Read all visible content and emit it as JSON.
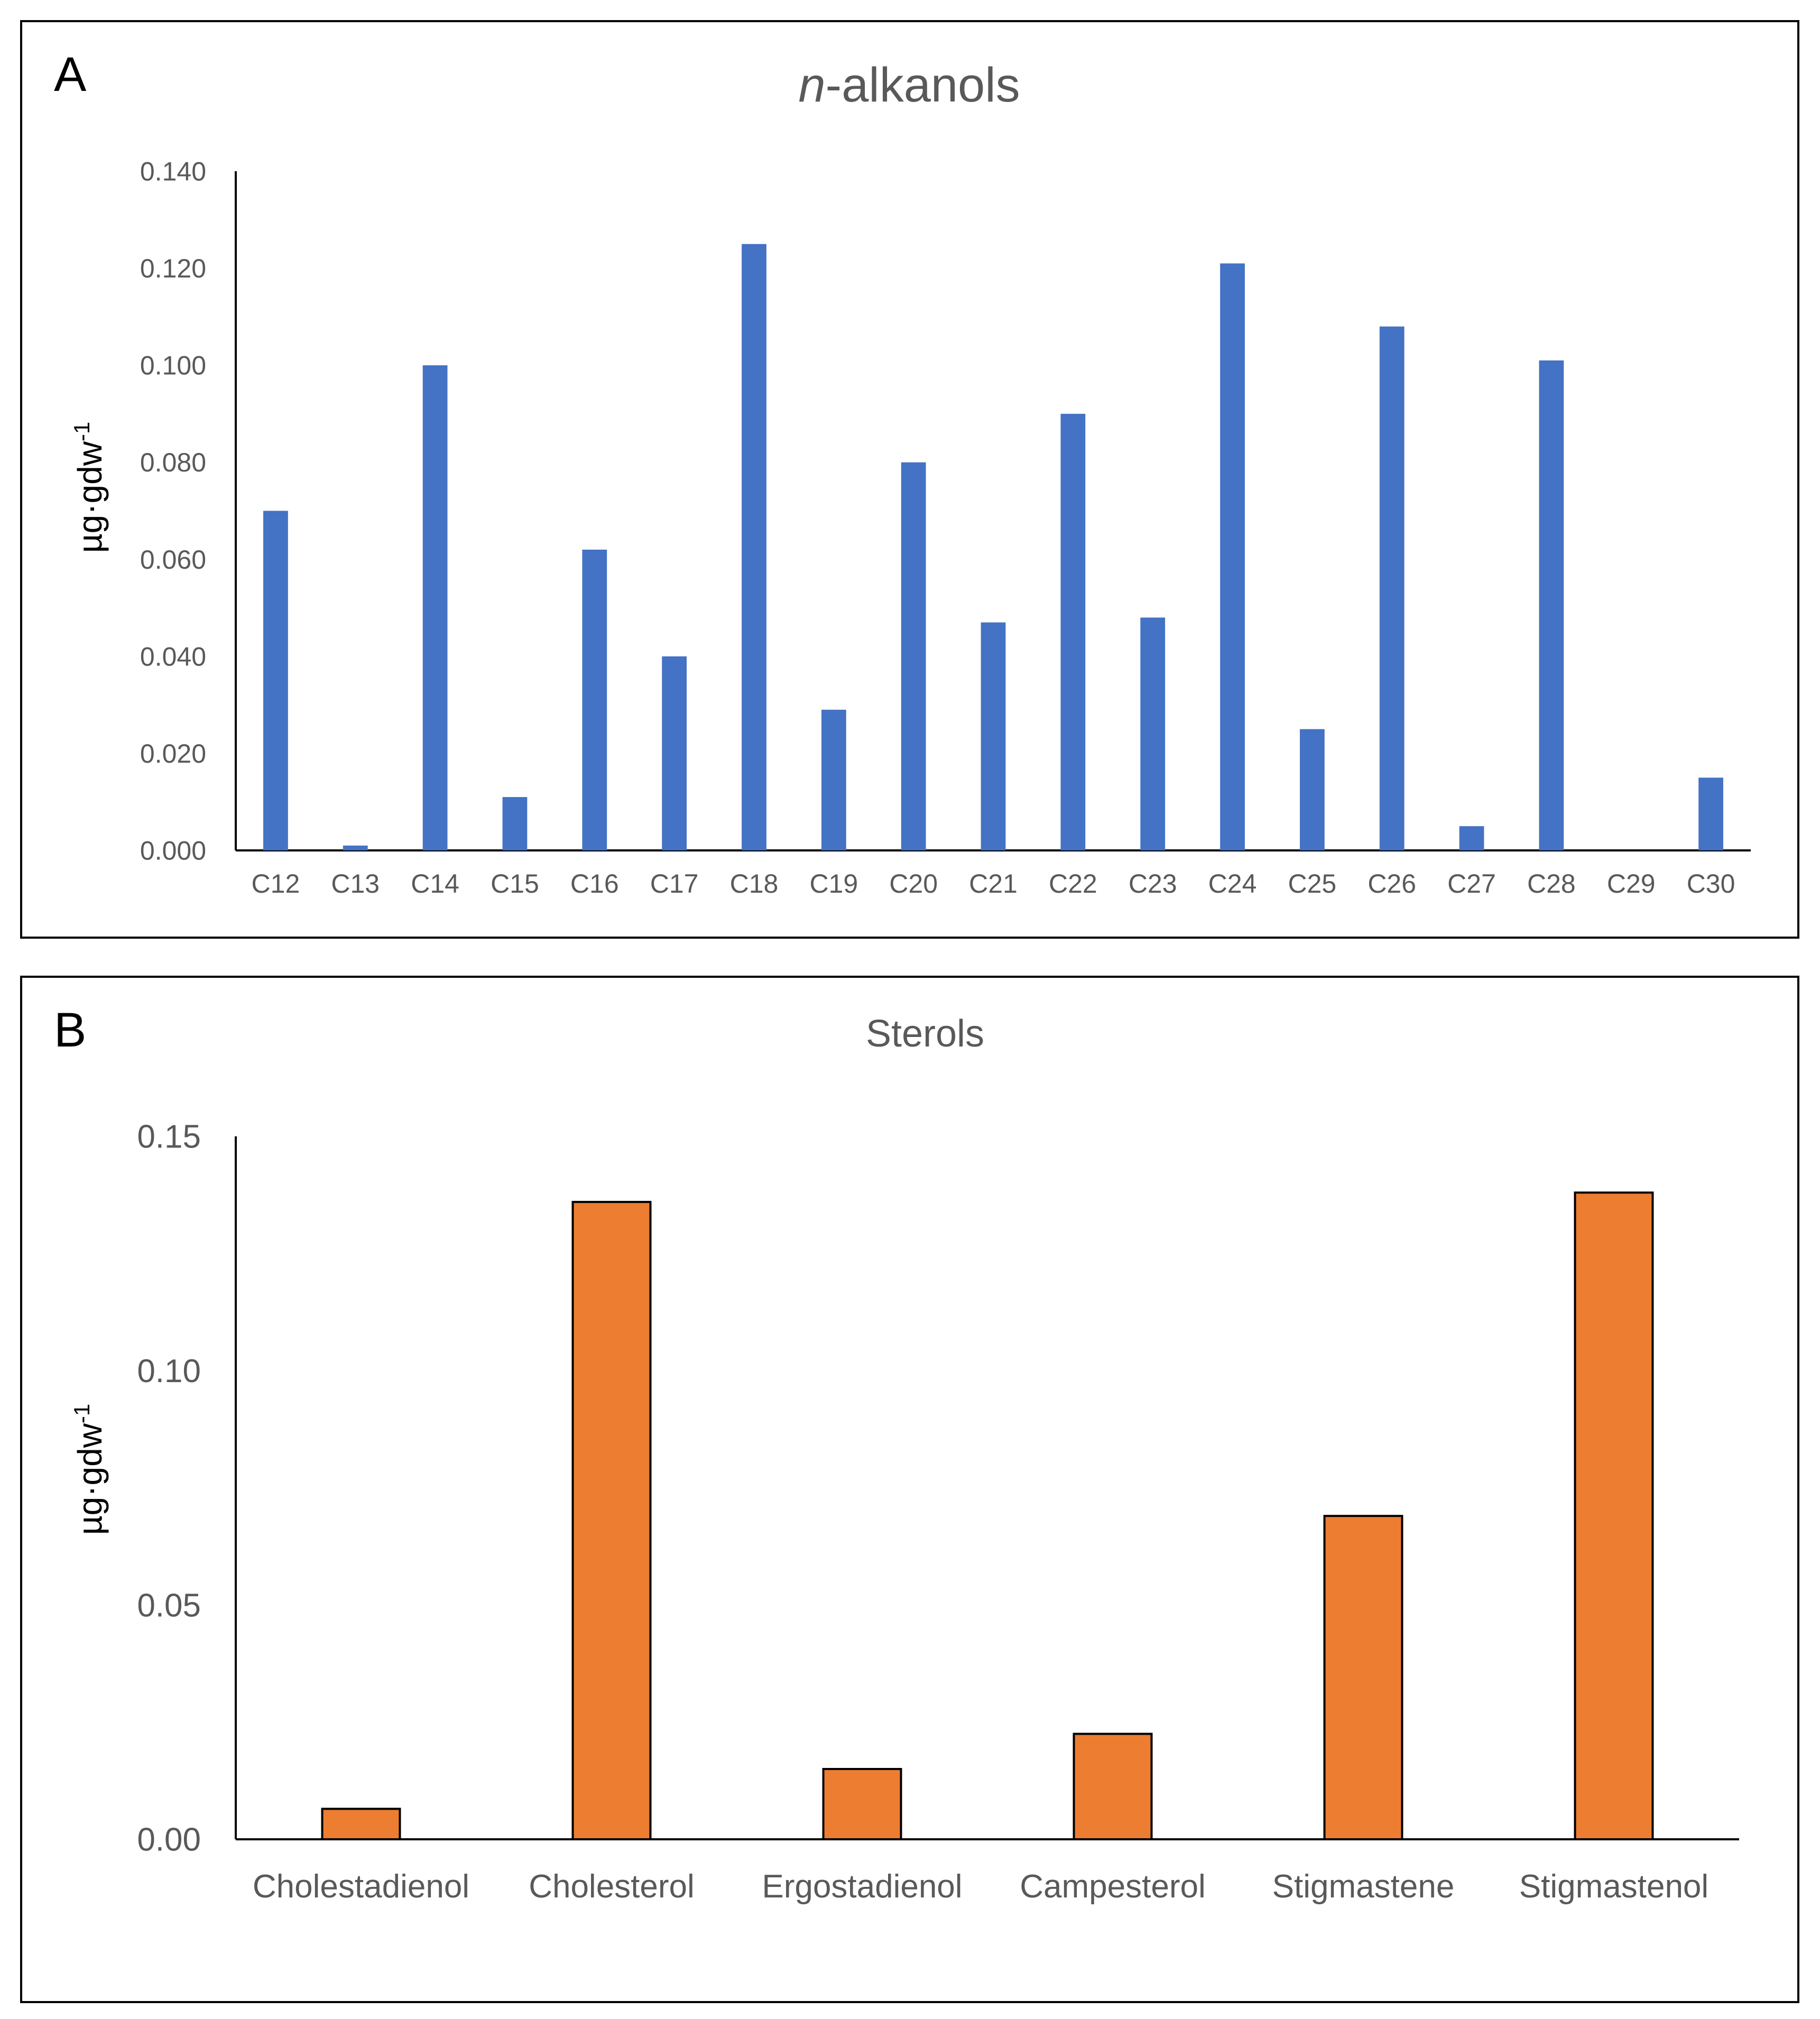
{
  "chart_data": [
    {
      "panel": "A",
      "type": "bar",
      "title_italic": "n",
      "title_rest": "-alkanols",
      "ylabel_base": "µg·gdw",
      "ylabel_sup": "-1",
      "ylim": [
        0,
        0.14
      ],
      "yticks": [
        "0.000",
        "0.020",
        "0.040",
        "0.060",
        "0.080",
        "0.100",
        "0.120",
        "0.140"
      ],
      "categories": [
        "C12",
        "C13",
        "C14",
        "C15",
        "C16",
        "C17",
        "C18",
        "C19",
        "C20",
        "C21",
        "C22",
        "C23",
        "C24",
        "C25",
        "C26",
        "C27",
        "C28",
        "C29",
        "C30"
      ],
      "values": [
        0.07,
        0.001,
        0.1,
        0.011,
        0.062,
        0.04,
        0.125,
        0.029,
        0.08,
        0.047,
        0.09,
        0.048,
        0.121,
        0.025,
        0.108,
        0.005,
        0.101,
        0.0,
        0.015
      ],
      "color": "#4472C4",
      "bar_outline": false,
      "grid": false
    },
    {
      "panel": "B",
      "type": "bar",
      "title": "Sterols",
      "ylabel_base": "µg·gdw",
      "ylabel_sup": "-1",
      "ylim": [
        0,
        0.15
      ],
      "yticks": [
        "0.00",
        "0.05",
        "0.10",
        "0.15"
      ],
      "categories": [
        "Cholestadienol",
        "Cholesterol",
        "Ergostadienol",
        "Campesterol",
        "Stigmastene",
        "Stigmastenol"
      ],
      "values": [
        0.0065,
        0.136,
        0.015,
        0.0225,
        0.069,
        0.138
      ],
      "color": "#ED7D31",
      "bar_outline": true,
      "grid": false
    }
  ]
}
